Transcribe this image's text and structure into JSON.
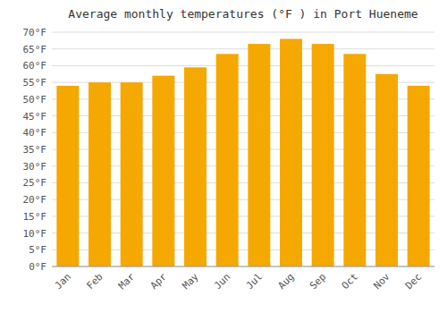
{
  "chart_data": {
    "type": "bar",
    "title": "Average monthly temperatures (°F ) in Port Hueneme",
    "categories": [
      "Jan",
      "Feb",
      "Mar",
      "Apr",
      "May",
      "Jun",
      "Jul",
      "Aug",
      "Sep",
      "Oct",
      "Nov",
      "Dec"
    ],
    "values": [
      54,
      55,
      55,
      57,
      59.5,
      63.5,
      66.5,
      68,
      66.5,
      63.5,
      57.5,
      54
    ],
    "color": "#F5A800",
    "ylim": [
      0,
      70
    ],
    "yticks": [
      {
        "value": 0,
        "label": "0°F"
      },
      {
        "value": 5,
        "label": "5°F"
      },
      {
        "value": 10,
        "label": "10°F"
      },
      {
        "value": 15,
        "label": "15°F"
      },
      {
        "value": 20,
        "label": "20°F"
      },
      {
        "value": 25,
        "label": "25°F"
      },
      {
        "value": 30,
        "label": "30°F"
      },
      {
        "value": 35,
        "label": "35°F"
      },
      {
        "value": 40,
        "label": "40°F"
      },
      {
        "value": 45,
        "label": "45°F"
      },
      {
        "value": 50,
        "label": "50°F"
      },
      {
        "value": 55,
        "label": "55°F"
      },
      {
        "value": 60,
        "label": "60°F"
      },
      {
        "value": 65,
        "label": "65°F"
      },
      {
        "value": 70,
        "label": "70°F"
      }
    ],
    "grid": true
  }
}
